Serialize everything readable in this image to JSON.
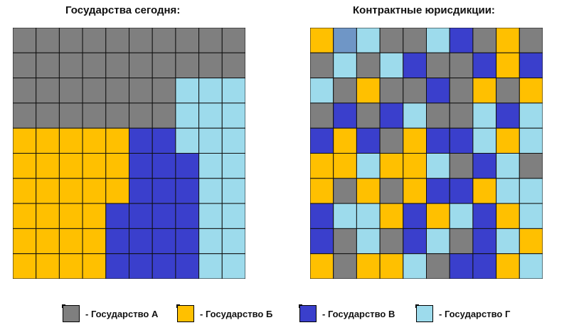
{
  "titles": {
    "left": "Государства сегодня:",
    "right": "Контрактные юрисдикции:"
  },
  "colors": {
    "A": "#7f7f7f",
    "B": "#ffc000",
    "V": "#3a3fcc",
    "G": "#9ddbec",
    "X": "#6f96c6",
    "grid_line": "#111111"
  },
  "legend": [
    {
      "key": "A",
      "label": "- Государство А"
    },
    {
      "key": "B",
      "label": "- Государство Б"
    },
    {
      "key": "V",
      "label": "- Государство В"
    },
    {
      "key": "G",
      "label": "- Государство Г"
    }
  ],
  "grids": {
    "left": [
      "AAAAAAAAAA",
      "AAAAAAAAAA",
      "AAAAAAAGGG",
      "AAAAAAAGGG",
      "BBBBBVVGGG",
      "BBBBBVVVGG",
      "BBBBBVVVGG",
      "BBBBVVVVGG",
      "BBBBVVVVGG",
      "BBBBVVVVGG"
    ],
    "right": [
      "BXGAAGVABA",
      "AGAGVAAVBV",
      "GABAAVABAB",
      "AVAVGAAGVG",
      "VBVABVVGBG",
      "BBGBBGAVGA",
      "BABABVVBGG",
      "VGGBVBGVBG",
      "VAGAVGAVGB",
      "BABBGAVVBG"
    ]
  }
}
